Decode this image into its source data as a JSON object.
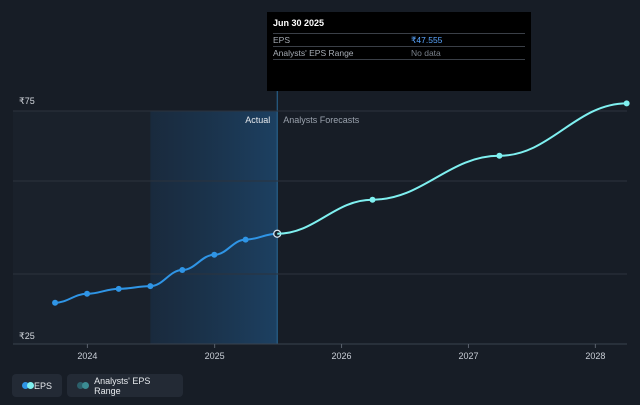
{
  "colors": {
    "background": "#171d26",
    "actual_line": "#2f95e6",
    "forecast_line": "#7ff0f0",
    "range": "#2b5f6a",
    "eps_value": "#5aa6ff",
    "past_band": "#1e2a39"
  },
  "tooltip": {
    "date": "Jun 30 2025",
    "rows": [
      {
        "label": "EPS",
        "value": "₹47.555"
      },
      {
        "label": "Analysts' EPS Range",
        "value": "No data"
      }
    ]
  },
  "regions": {
    "actual_label": "Actual",
    "forecast_label": "Analysts Forecasts"
  },
  "legend": {
    "items": [
      {
        "label": "EPS",
        "icon": "eps-dot-icon"
      },
      {
        "label": "Analysts' EPS Range",
        "icon": "range-dot-icon"
      }
    ]
  },
  "chart_data": {
    "type": "line",
    "title": "",
    "xlabel": "",
    "ylabel": "",
    "x_ticks": [
      "2024",
      "2025",
      "2026",
      "2027",
      "2028"
    ],
    "y_ticks": [
      "₹75",
      "₹25"
    ],
    "ylim": [
      25,
      75
    ],
    "xlim": [
      "2023-06-01",
      "2028-04-01"
    ],
    "grid": true,
    "series": [
      {
        "name": "EPS",
        "kind": "actual",
        "points": [
          {
            "x": "2023-09-30",
            "y": 32.2
          },
          {
            "x": "2023-12-31",
            "y": 34.2
          },
          {
            "x": "2024-03-31",
            "y": 35.3
          },
          {
            "x": "2024-06-30",
            "y": 35.9
          },
          {
            "x": "2024-09-30",
            "y": 39.5
          },
          {
            "x": "2024-12-31",
            "y": 42.9
          },
          {
            "x": "2025-03-31",
            "y": 46.3
          },
          {
            "x": "2025-06-30",
            "y": 47.6
          }
        ]
      },
      {
        "name": "EPS",
        "kind": "forecast",
        "points": [
          {
            "x": "2025-06-30",
            "y": 47.6
          },
          {
            "x": "2026-03-31",
            "y": 55.2
          },
          {
            "x": "2027-03-31",
            "y": 65.0
          },
          {
            "x": "2028-03-31",
            "y": 76.7
          }
        ]
      }
    ],
    "highlight": {
      "x": "2025-06-30",
      "value": 47.555
    },
    "legend_position": "bottom-left"
  }
}
